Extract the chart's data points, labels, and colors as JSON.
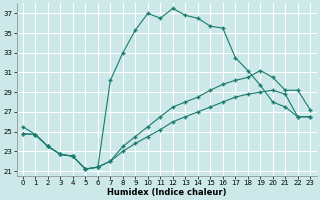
{
  "xlabel": "Humidex (Indice chaleur)",
  "bg_color": "#cce8e8",
  "grid_color": "#ffffff",
  "line_color": "#1a7a6e",
  "xlim": [
    -0.5,
    23.5
  ],
  "ylim": [
    20.5,
    38.0
  ],
  "xticks": [
    0,
    1,
    2,
    3,
    4,
    5,
    6,
    7,
    8,
    9,
    10,
    11,
    12,
    13,
    14,
    15,
    16,
    17,
    18,
    19,
    20,
    21,
    22,
    23
  ],
  "yticks": [
    21,
    23,
    25,
    27,
    29,
    31,
    33,
    35,
    37
  ],
  "curve1_x": [
    0,
    1,
    2,
    3,
    4,
    5,
    6,
    7,
    8,
    9,
    10,
    11,
    12,
    13,
    14,
    15,
    16,
    17,
    18,
    19,
    20,
    21,
    22,
    23
  ],
  "curve1_y": [
    25.5,
    24.7,
    23.5,
    22.7,
    22.5,
    21.2,
    21.4,
    30.2,
    33.0,
    35.3,
    37.0,
    36.5,
    37.5,
    36.8,
    36.5,
    35.7,
    35.5,
    32.5,
    31.2,
    29.7,
    28.0,
    27.5,
    26.5,
    26.5
  ],
  "curve2_x": [
    0,
    1,
    2,
    3,
    4,
    5,
    6,
    7,
    8,
    9,
    10,
    11,
    12,
    13,
    14,
    15,
    16,
    17,
    18,
    19,
    20,
    21,
    22,
    23
  ],
  "curve2_y": [
    24.8,
    24.7,
    23.5,
    22.7,
    22.5,
    21.2,
    21.4,
    22.0,
    23.5,
    24.5,
    25.5,
    26.5,
    27.5,
    28.0,
    28.5,
    29.2,
    29.8,
    30.2,
    30.5,
    31.2,
    30.5,
    29.2,
    29.2,
    27.2
  ],
  "curve3_x": [
    0,
    1,
    2,
    3,
    4,
    5,
    6,
    7,
    8,
    9,
    10,
    11,
    12,
    13,
    14,
    15,
    16,
    17,
    18,
    19,
    20,
    21,
    22,
    23
  ],
  "curve3_y": [
    24.8,
    24.7,
    23.5,
    22.7,
    22.5,
    21.2,
    21.4,
    22.0,
    23.0,
    23.8,
    24.5,
    25.2,
    26.0,
    26.5,
    27.0,
    27.5,
    28.0,
    28.5,
    28.8,
    29.0,
    29.2,
    28.8,
    26.5,
    26.5
  ]
}
